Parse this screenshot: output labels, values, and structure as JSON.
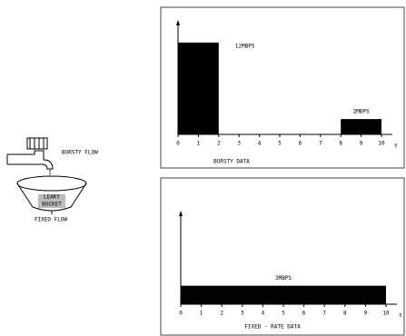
{
  "diagram": {
    "labels": {
      "input": "BURSTY FLOW",
      "bucket_line1": "LEAKY",
      "bucket_line2": "BUCKET",
      "output": "FIXED FLOW"
    }
  },
  "chart_data": [
    {
      "type": "bar",
      "xlabel": "BURSTY DATA",
      "x_unit": "s",
      "color": "#000000",
      "xlim": [
        0,
        10
      ],
      "xticks": [
        0,
        1,
        2,
        3,
        4,
        5,
        6,
        7,
        8,
        9,
        10
      ],
      "ylim": [
        0,
        14
      ],
      "x": [
        [
          0,
          2
        ],
        [
          8,
          10
        ]
      ],
      "values": [
        12,
        2
      ],
      "value_labels": [
        "12MBPS",
        "2MBPS"
      ]
    },
    {
      "type": "bar",
      "xlabel": "FIXED - RATE DATA",
      "x_unit": "s",
      "color": "#000000",
      "xlim": [
        0,
        10
      ],
      "xticks": [
        0,
        1,
        2,
        3,
        4,
        5,
        6,
        7,
        8,
        9,
        10
      ],
      "ylim": [
        0,
        14
      ],
      "x": [
        [
          0,
          10
        ]
      ],
      "values": [
        3
      ],
      "value_labels": [
        "3MBPS"
      ]
    }
  ]
}
